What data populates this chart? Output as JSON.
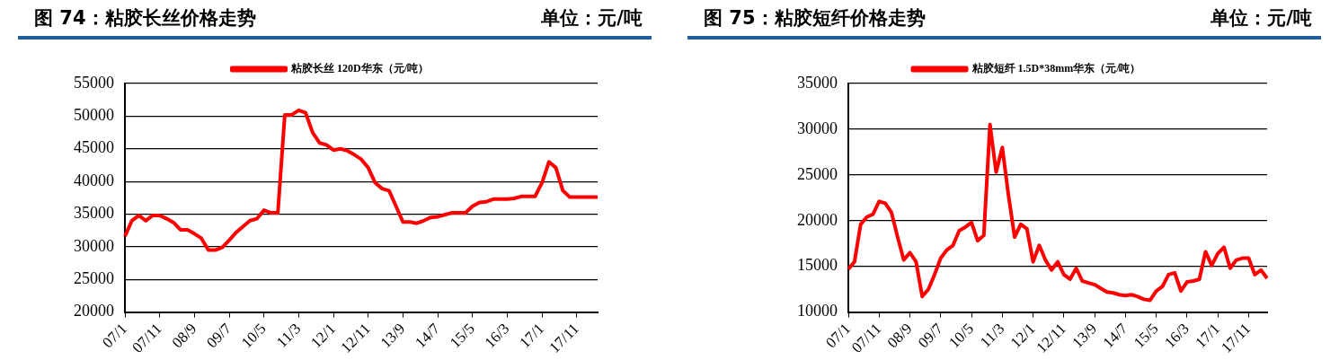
{
  "chart_data": [
    {
      "type": "line",
      "title": "图 74：粘胶长丝价格走势",
      "subtitle": "单位：元/吨",
      "categories": [
        "07/1",
        null,
        null,
        null,
        null,
        "07/11",
        null,
        null,
        null,
        null,
        "08/9",
        null,
        null,
        null,
        null,
        "09/7",
        null,
        null,
        null,
        null,
        "10/5",
        null,
        null,
        null,
        null,
        "11/3",
        null,
        null,
        null,
        null,
        "12/1",
        null,
        null,
        null,
        null,
        "12/11",
        null,
        null,
        null,
        null,
        "13/9",
        null,
        null,
        null,
        null,
        "14/7",
        null,
        null,
        null,
        null,
        "15/5",
        null,
        null,
        null,
        null,
        "16/3",
        null,
        null,
        null,
        null,
        "17/1",
        null,
        null,
        null,
        null,
        "17/11",
        null,
        null,
        null
      ],
      "series": [
        {
          "name": "粘胶长丝 120D华东（元/吨）",
          "color": "#ff0000",
          "values": [
            31600,
            34000,
            34800,
            34000,
            34800,
            34800,
            34300,
            33700,
            32600,
            32600,
            32000,
            31300,
            29500,
            29500,
            29900,
            31000,
            32200,
            33100,
            34000,
            34300,
            35600,
            35200,
            35200,
            50200,
            50200,
            50900,
            50500,
            47500,
            45900,
            45600,
            44800,
            45000,
            44700,
            44100,
            43400,
            42100,
            39800,
            38900,
            38600,
            36200,
            33800,
            33800,
            33600,
            34000,
            34500,
            34600,
            34900,
            35200,
            35200,
            35200,
            36200,
            36800,
            36900,
            37300,
            37300,
            37300,
            37400,
            37700,
            37700,
            37700,
            39800,
            43000,
            42100,
            38600,
            37600,
            37600,
            37600,
            37600,
            37600
          ]
        }
      ],
      "ylim": [
        20000,
        55000
      ],
      "yticks": [
        20000,
        25000,
        30000,
        35000,
        40000,
        45000,
        50000,
        55000
      ],
      "grid": "y",
      "legend": "top"
    },
    {
      "type": "line",
      "title": "图 75：粘胶短纤价格走势",
      "subtitle": "单位：元/吨",
      "categories": [
        "07/1",
        null,
        null,
        null,
        null,
        "07/11",
        null,
        null,
        null,
        null,
        "08/9",
        null,
        null,
        null,
        null,
        "09/7",
        null,
        null,
        null,
        null,
        "10/5",
        null,
        null,
        null,
        null,
        "11/3",
        null,
        null,
        null,
        null,
        "12/1",
        null,
        null,
        null,
        null,
        "12/11",
        null,
        null,
        null,
        null,
        "13/9",
        null,
        null,
        null,
        null,
        "14/7",
        null,
        null,
        null,
        null,
        "15/5",
        null,
        null,
        null,
        null,
        "16/3",
        null,
        null,
        null,
        null,
        "17/1",
        null,
        null,
        null,
        null,
        "17/11",
        null,
        null,
        null
      ],
      "series": [
        {
          "name": "粘胶短纤 1.5D*38mm华东（元/吨）",
          "color": "#ff0000",
          "values": [
            14700,
            15500,
            19600,
            20400,
            20700,
            22100,
            21900,
            20900,
            18200,
            15700,
            16500,
            15500,
            11700,
            12500,
            14100,
            15900,
            16800,
            17300,
            18900,
            19300,
            19800,
            17800,
            18400,
            30500,
            25300,
            28000,
            22800,
            18200,
            19600,
            19100,
            15500,
            17300,
            15700,
            14600,
            15500,
            14100,
            13600,
            14800,
            13400,
            13200,
            13000,
            12600,
            12200,
            12100,
            11900,
            11800,
            11900,
            11700,
            11400,
            11300,
            12300,
            12800,
            14100,
            14300,
            12300,
            13300,
            13400,
            13600,
            16600,
            15100,
            16400,
            17100,
            14800,
            15700,
            15900,
            15900,
            14100,
            14600,
            13700
          ]
        }
      ],
      "ylim": [
        10000,
        35000
      ],
      "yticks": [
        10000,
        15000,
        20000,
        25000,
        30000,
        35000
      ],
      "grid": "y",
      "legend": "top"
    }
  ]
}
